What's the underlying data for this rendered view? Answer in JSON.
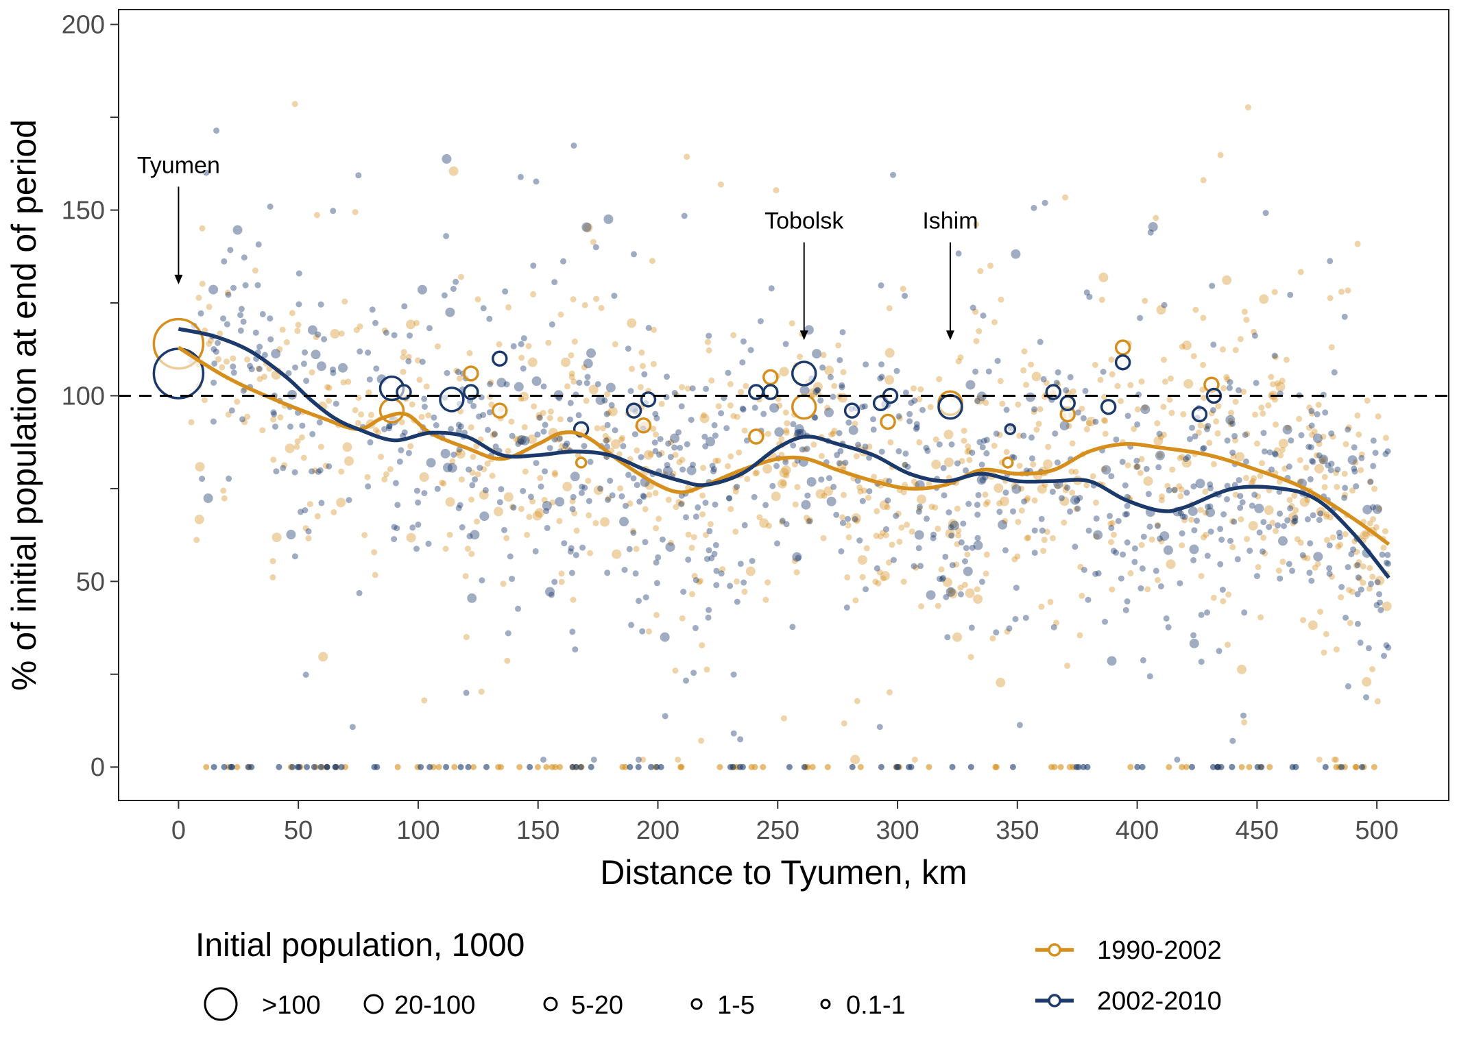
{
  "chart_data": {
    "type": "scatter",
    "title": "",
    "xlabel": "Distance to Tyumen, km",
    "ylabel": "% of initial population at end of period",
    "xlim": [
      -25,
      530
    ],
    "ylim": [
      -9,
      204
    ],
    "x_ticks": [
      0,
      50,
      100,
      150,
      200,
      250,
      300,
      350,
      400,
      450,
      500
    ],
    "y_ticks": [
      0,
      50,
      100,
      150,
      200
    ],
    "reference_line": {
      "y": 100,
      "style": "dashed"
    },
    "grid": false,
    "colors": {
      "1990-2002": "#D68F1C",
      "2002-2010": "#1B3A6B"
    },
    "series": [
      {
        "name": "1990-2002",
        "smooth_line": {
          "x": [
            0,
            20,
            40,
            60,
            75,
            85,
            95,
            105,
            120,
            135,
            150,
            160,
            170,
            185,
            200,
            210,
            220,
            235,
            250,
            262,
            275,
            290,
            305,
            320,
            335,
            350,
            365,
            380,
            395,
            410,
            430,
            450,
            470,
            490,
            505
          ],
          "y": [
            113,
            105,
            99,
            94,
            91,
            94,
            95,
            90,
            86,
            83,
            87,
            90,
            89,
            82,
            76,
            74,
            76,
            80,
            83,
            83,
            80,
            77,
            75,
            76,
            80,
            79,
            80,
            85,
            87,
            86,
            84,
            80,
            75,
            67,
            60
          ]
        },
        "towns": [
          {
            "name": "Tyumen",
            "x": 0,
            "y": 114,
            "size_class": ">100"
          },
          {
            "name": "Tobolsk",
            "x": 261,
            "y": 97,
            "size_class": "20-100"
          },
          {
            "name": "Ishim",
            "x": 322,
            "y": 98,
            "size_class": "20-100"
          },
          {
            "x": 89,
            "y": 96,
            "size_class": "20-100"
          },
          {
            "x": 122,
            "y": 106,
            "size_class": "5-20"
          },
          {
            "x": 134,
            "y": 96,
            "size_class": "5-20"
          },
          {
            "x": 168,
            "y": 82,
            "size_class": "1-5"
          },
          {
            "x": 194,
            "y": 92,
            "size_class": "5-20"
          },
          {
            "x": 241,
            "y": 89,
            "size_class": "5-20"
          },
          {
            "x": 247,
            "y": 105,
            "size_class": "5-20"
          },
          {
            "x": 296,
            "y": 93,
            "size_class": "5-20"
          },
          {
            "x": 346,
            "y": 82,
            "size_class": "1-5"
          },
          {
            "x": 371,
            "y": 95,
            "size_class": "5-20"
          },
          {
            "x": 394,
            "y": 113,
            "size_class": "5-20"
          },
          {
            "x": 431,
            "y": 103,
            "size_class": "5-20"
          }
        ]
      },
      {
        "name": "2002-2010",
        "smooth_line": {
          "x": [
            0,
            15,
            30,
            45,
            55,
            65,
            75,
            90,
            105,
            120,
            135,
            150,
            165,
            180,
            195,
            210,
            220,
            235,
            250,
            262,
            275,
            290,
            305,
            320,
            335,
            350,
            365,
            380,
            395,
            410,
            420,
            440,
            460,
            475,
            490,
            505
          ],
          "y": [
            118,
            116,
            112,
            105,
            99,
            94,
            91,
            88,
            90,
            89,
            84,
            84,
            85,
            84,
            80,
            77,
            76,
            79,
            86,
            89,
            87,
            84,
            79,
            77,
            79,
            77,
            77,
            77,
            72,
            69,
            70,
            75,
            75,
            72,
            63,
            51
          ]
        },
        "towns": [
          {
            "name": "Tyumen",
            "x": 0,
            "y": 106,
            "size_class": ">100"
          },
          {
            "name": "Tobolsk",
            "x": 261,
            "y": 106,
            "size_class": "20-100"
          },
          {
            "name": "Ishim",
            "x": 322,
            "y": 97,
            "size_class": "20-100"
          },
          {
            "x": 89,
            "y": 102,
            "size_class": "20-100"
          },
          {
            "x": 94,
            "y": 101,
            "size_class": "5-20"
          },
          {
            "x": 114,
            "y": 99,
            "size_class": "20-100"
          },
          {
            "x": 122,
            "y": 101,
            "size_class": "5-20"
          },
          {
            "x": 134,
            "y": 110,
            "size_class": "5-20"
          },
          {
            "x": 168,
            "y": 91,
            "size_class": "5-20"
          },
          {
            "x": 190,
            "y": 96,
            "size_class": "5-20"
          },
          {
            "x": 196,
            "y": 99,
            "size_class": "5-20"
          },
          {
            "x": 241,
            "y": 101,
            "size_class": "5-20"
          },
          {
            "x": 247,
            "y": 101,
            "size_class": "5-20"
          },
          {
            "x": 281,
            "y": 96,
            "size_class": "5-20"
          },
          {
            "x": 293,
            "y": 98,
            "size_class": "5-20"
          },
          {
            "x": 297,
            "y": 100,
            "size_class": "5-20"
          },
          {
            "x": 347,
            "y": 91,
            "size_class": "1-5"
          },
          {
            "x": 365,
            "y": 101,
            "size_class": "5-20"
          },
          {
            "x": 371,
            "y": 98,
            "size_class": "5-20"
          },
          {
            "x": 388,
            "y": 97,
            "size_class": "5-20"
          },
          {
            "x": 394,
            "y": 109,
            "size_class": "5-20"
          },
          {
            "x": 426,
            "y": 95,
            "size_class": "5-20"
          },
          {
            "x": 432,
            "y": 100,
            "size_class": "5-20"
          }
        ]
      }
    ],
    "annotations": [
      {
        "label": "Tyumen",
        "x": 0,
        "y_text": 160,
        "y_arrow_end": 130
      },
      {
        "label": "Tobolsk",
        "x": 261,
        "y_text": 145,
        "y_arrow_end": 115
      },
      {
        "label": "Ishim",
        "x": 322,
        "y_text": 145,
        "y_arrow_end": 115
      }
    ],
    "legend": {
      "size_title": "Initial population, 1000",
      "size_classes": [
        ">100",
        "20-100",
        "5-20",
        "1-5",
        "0.1-1"
      ],
      "series_labels": [
        "1990-2002",
        "2002-2010"
      ],
      "placement": "bottom"
    }
  }
}
